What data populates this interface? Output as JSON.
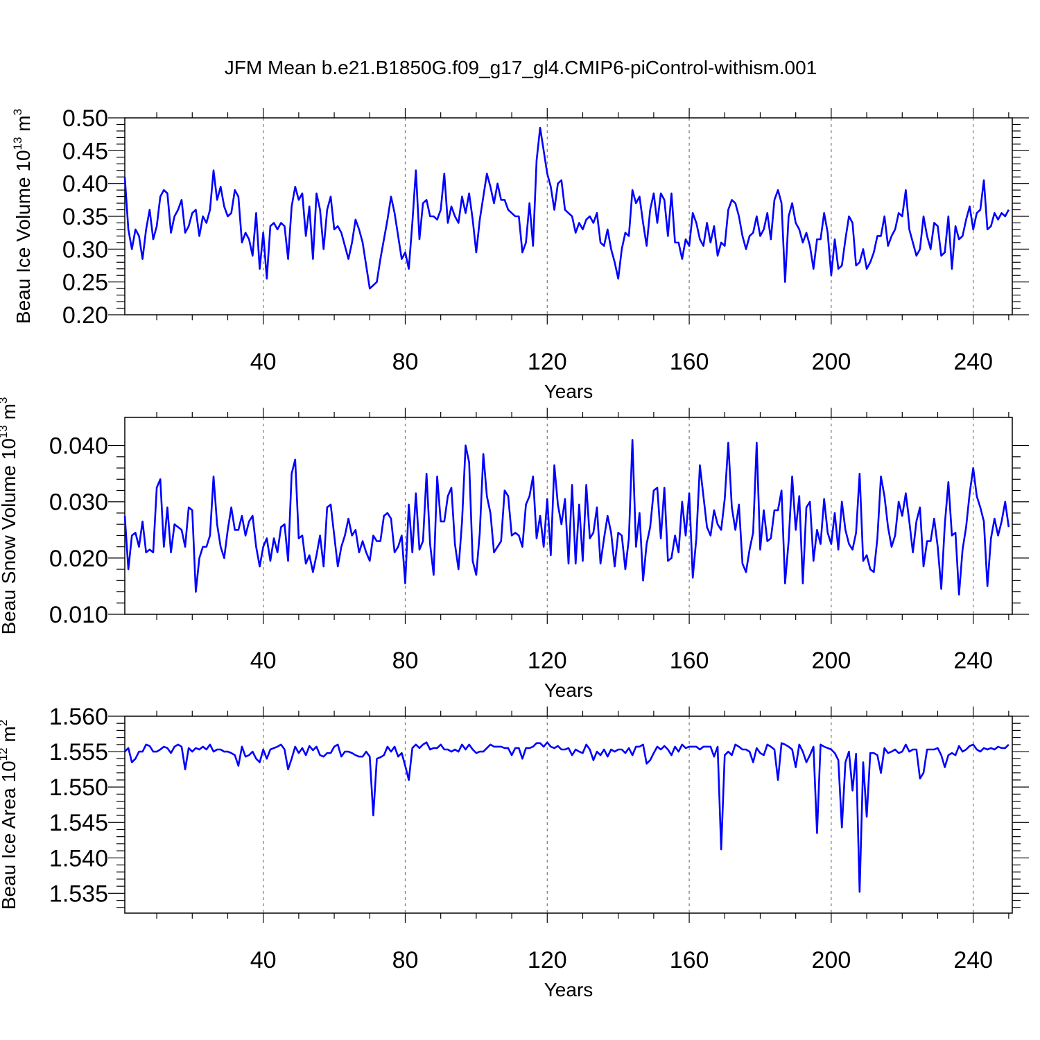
{
  "title": "JFM Mean b.e21.B1850G.f09_g17_gl4.CMIP6-piControl-withism.001",
  "colors": {
    "series": "#0000ff",
    "axis": "#000000",
    "grid": "#777777"
  },
  "chart_data": [
    {
      "type": "line",
      "ylabel_main": "Beau Ice Volume 10",
      "ylabel_exp": "13",
      "ylabel_unit": "m",
      "ylabel_unit_exp": "3",
      "xlabel": "Years",
      "xlim": [
        1,
        251
      ],
      "ylim": [
        0.2,
        0.5
      ],
      "xticks": [
        40,
        80,
        120,
        160,
        200,
        240
      ],
      "xtick_labels": [
        "40",
        "80",
        "120",
        "160",
        "200",
        "240"
      ],
      "yticks": [
        0.2,
        0.25,
        0.3,
        0.35,
        0.4,
        0.45,
        0.5
      ],
      "ytick_labels": [
        "0.20",
        "0.25",
        "0.30",
        "0.35",
        "0.40",
        "0.45",
        "0.50"
      ],
      "grid_x": [
        40,
        80,
        120,
        160,
        200,
        240
      ],
      "x_start": 1,
      "values": [
        0.41,
        0.33,
        0.3,
        0.33,
        0.32,
        0.285,
        0.33,
        0.36,
        0.315,
        0.335,
        0.38,
        0.39,
        0.385,
        0.325,
        0.35,
        0.36,
        0.375,
        0.325,
        0.335,
        0.355,
        0.36,
        0.32,
        0.35,
        0.34,
        0.36,
        0.42,
        0.375,
        0.395,
        0.365,
        0.35,
        0.355,
        0.39,
        0.38,
        0.31,
        0.325,
        0.315,
        0.29,
        0.355,
        0.27,
        0.325,
        0.255,
        0.335,
        0.34,
        0.33,
        0.34,
        0.335,
        0.285,
        0.365,
        0.395,
        0.375,
        0.385,
        0.32,
        0.365,
        0.285,
        0.385,
        0.36,
        0.3,
        0.36,
        0.38,
        0.33,
        0.335,
        0.325,
        0.305,
        0.285,
        0.31,
        0.345,
        0.33,
        0.31,
        0.275,
        0.24,
        0.245,
        0.25,
        0.285,
        0.315,
        0.345,
        0.38,
        0.355,
        0.32,
        0.285,
        0.295,
        0.27,
        0.34,
        0.42,
        0.315,
        0.37,
        0.375,
        0.35,
        0.35,
        0.345,
        0.36,
        0.415,
        0.34,
        0.365,
        0.35,
        0.34,
        0.38,
        0.355,
        0.385,
        0.345,
        0.295,
        0.345,
        0.38,
        0.415,
        0.395,
        0.37,
        0.4,
        0.375,
        0.375,
        0.36,
        0.355,
        0.35,
        0.35,
        0.295,
        0.31,
        0.37,
        0.305,
        0.435,
        0.485,
        0.45,
        0.415,
        0.395,
        0.36,
        0.4,
        0.405,
        0.36,
        0.355,
        0.35,
        0.325,
        0.34,
        0.33,
        0.345,
        0.35,
        0.34,
        0.355,
        0.31,
        0.305,
        0.33,
        0.3,
        0.28,
        0.255,
        0.3,
        0.325,
        0.32,
        0.39,
        0.37,
        0.38,
        0.34,
        0.305,
        0.36,
        0.385,
        0.34,
        0.385,
        0.375,
        0.32,
        0.385,
        0.31,
        0.31,
        0.285,
        0.315,
        0.305,
        0.355,
        0.34,
        0.315,
        0.305,
        0.34,
        0.31,
        0.335,
        0.29,
        0.31,
        0.305,
        0.36,
        0.375,
        0.37,
        0.35,
        0.32,
        0.3,
        0.32,
        0.325,
        0.35,
        0.32,
        0.33,
        0.355,
        0.315,
        0.375,
        0.39,
        0.37,
        0.25,
        0.35,
        0.37,
        0.34,
        0.33,
        0.31,
        0.325,
        0.305,
        0.27,
        0.315,
        0.315,
        0.355,
        0.325,
        0.26,
        0.315,
        0.27,
        0.275,
        0.315,
        0.35,
        0.34,
        0.275,
        0.28,
        0.3,
        0.27,
        0.28,
        0.295,
        0.32,
        0.32,
        0.35,
        0.305,
        0.32,
        0.33,
        0.355,
        0.35,
        0.39,
        0.33,
        0.31,
        0.29,
        0.3,
        0.35,
        0.32,
        0.3,
        0.34,
        0.335,
        0.29,
        0.295,
        0.35,
        0.27,
        0.335,
        0.315,
        0.32,
        0.345,
        0.365,
        0.33,
        0.355,
        0.36,
        0.405,
        0.33,
        0.335,
        0.355,
        0.345,
        0.355,
        0.35,
        0.36
      ]
    },
    {
      "type": "line",
      "ylabel_main": "Beau Snow Volume 10",
      "ylabel_exp": "13",
      "ylabel_unit": "m",
      "ylabel_unit_exp": "3",
      "xlabel": "Years",
      "xlim": [
        1,
        251
      ],
      "ylim": [
        0.01,
        0.045
      ],
      "xticks": [
        40,
        80,
        120,
        160,
        200,
        240
      ],
      "xtick_labels": [
        "40",
        "80",
        "120",
        "160",
        "200",
        "240"
      ],
      "yticks": [
        0.01,
        0.02,
        0.03,
        0.04
      ],
      "ytick_labels": [
        "0.010",
        "0.020",
        "0.030",
        "0.040"
      ],
      "grid_x": [
        40,
        80,
        120,
        160,
        200,
        240
      ],
      "x_start": 1,
      "values": [
        0.0275,
        0.018,
        0.024,
        0.0245,
        0.022,
        0.0265,
        0.021,
        0.0215,
        0.021,
        0.0325,
        0.034,
        0.022,
        0.029,
        0.021,
        0.026,
        0.0255,
        0.025,
        0.022,
        0.029,
        0.0285,
        0.014,
        0.02,
        0.022,
        0.022,
        0.024,
        0.0345,
        0.026,
        0.022,
        0.02,
        0.025,
        0.029,
        0.025,
        0.025,
        0.0275,
        0.024,
        0.0265,
        0.0275,
        0.022,
        0.0185,
        0.022,
        0.0235,
        0.0195,
        0.0235,
        0.021,
        0.0255,
        0.026,
        0.0195,
        0.035,
        0.0375,
        0.0235,
        0.024,
        0.019,
        0.0205,
        0.0175,
        0.0205,
        0.024,
        0.0185,
        0.029,
        0.0295,
        0.024,
        0.0185,
        0.022,
        0.024,
        0.027,
        0.024,
        0.025,
        0.021,
        0.023,
        0.021,
        0.0195,
        0.024,
        0.023,
        0.023,
        0.0275,
        0.028,
        0.027,
        0.021,
        0.022,
        0.024,
        0.0155,
        0.0295,
        0.021,
        0.0315,
        0.0215,
        0.023,
        0.035,
        0.0225,
        0.017,
        0.0345,
        0.0265,
        0.0265,
        0.031,
        0.0325,
        0.0225,
        0.018,
        0.0265,
        0.04,
        0.037,
        0.0195,
        0.017,
        0.0245,
        0.0385,
        0.031,
        0.028,
        0.021,
        0.022,
        0.023,
        0.032,
        0.031,
        0.024,
        0.0245,
        0.024,
        0.022,
        0.0295,
        0.031,
        0.0345,
        0.0235,
        0.0275,
        0.022,
        0.0305,
        0.0205,
        0.0365,
        0.0295,
        0.026,
        0.0305,
        0.019,
        0.033,
        0.019,
        0.0295,
        0.0195,
        0.033,
        0.0235,
        0.0245,
        0.029,
        0.019,
        0.0235,
        0.0275,
        0.0245,
        0.0185,
        0.0245,
        0.024,
        0.018,
        0.0235,
        0.041,
        0.022,
        0.028,
        0.016,
        0.0225,
        0.0255,
        0.032,
        0.0325,
        0.0235,
        0.0325,
        0.0195,
        0.02,
        0.024,
        0.021,
        0.03,
        0.024,
        0.0315,
        0.0165,
        0.0235,
        0.0365,
        0.031,
        0.0255,
        0.024,
        0.0285,
        0.026,
        0.025,
        0.0305,
        0.0405,
        0.029,
        0.025,
        0.0295,
        0.019,
        0.0175,
        0.0215,
        0.0245,
        0.0405,
        0.0215,
        0.0285,
        0.023,
        0.0235,
        0.0285,
        0.0285,
        0.032,
        0.0155,
        0.023,
        0.0345,
        0.025,
        0.031,
        0.0155,
        0.029,
        0.03,
        0.0195,
        0.025,
        0.0225,
        0.0305,
        0.0245,
        0.0225,
        0.028,
        0.0215,
        0.03,
        0.025,
        0.0225,
        0.0215,
        0.0245,
        0.035,
        0.0195,
        0.0205,
        0.018,
        0.0175,
        0.0235,
        0.0345,
        0.031,
        0.0255,
        0.022,
        0.024,
        0.03,
        0.0275,
        0.0315,
        0.0265,
        0.021,
        0.0265,
        0.029,
        0.0185,
        0.023,
        0.023,
        0.027,
        0.022,
        0.0145,
        0.026,
        0.0335,
        0.024,
        0.0245,
        0.0135,
        0.0215,
        0.0255,
        0.0315,
        0.036,
        0.031,
        0.029,
        0.0265,
        0.015,
        0.0235,
        0.027,
        0.024,
        0.0265,
        0.03,
        0.0255
      ]
    },
    {
      "type": "line",
      "ylabel_main": "Beau Ice Area 10",
      "ylabel_exp": "12",
      "ylabel_unit": "m",
      "ylabel_unit_exp": "2",
      "xlabel": "Years",
      "xlim": [
        1,
        251
      ],
      "ylim": [
        1.5322,
        1.56
      ],
      "xticks": [
        40,
        80,
        120,
        160,
        200,
        240
      ],
      "xtick_labels": [
        "40",
        "80",
        "120",
        "160",
        "200",
        "240"
      ],
      "yticks": [
        1.535,
        1.54,
        1.545,
        1.55,
        1.555,
        1.56
      ],
      "ytick_labels": [
        "1.535",
        "1.540",
        "1.545",
        "1.550",
        "1.555",
        "1.560"
      ],
      "grid_x": [
        40,
        80,
        120,
        160,
        200,
        240
      ],
      "x_start": 1,
      "values": [
        1.555,
        1.5555,
        1.5535,
        1.554,
        1.555,
        1.555,
        1.556,
        1.5558,
        1.555,
        1.555,
        1.5553,
        1.5557,
        1.5555,
        1.5548,
        1.5557,
        1.556,
        1.5557,
        1.5525,
        1.5555,
        1.555,
        1.5555,
        1.5553,
        1.5557,
        1.5553,
        1.556,
        1.555,
        1.5553,
        1.5553,
        1.555,
        1.555,
        1.5548,
        1.5545,
        1.553,
        1.5557,
        1.5543,
        1.5545,
        1.555,
        1.554,
        1.5535,
        1.5553,
        1.554,
        1.5553,
        1.5555,
        1.5557,
        1.556,
        1.5553,
        1.5525,
        1.554,
        1.5557,
        1.5548,
        1.5555,
        1.5545,
        1.5558,
        1.5552,
        1.5557,
        1.5545,
        1.5543,
        1.5548,
        1.5548,
        1.5557,
        1.556,
        1.5543,
        1.555,
        1.555,
        1.5548,
        1.5545,
        1.5543,
        1.5543,
        1.555,
        1.5543,
        1.546,
        1.554,
        1.5542,
        1.5545,
        1.5557,
        1.555,
        1.5557,
        1.5543,
        1.5548,
        1.553,
        1.551,
        1.5555,
        1.556,
        1.5555,
        1.556,
        1.5563,
        1.5553,
        1.5555,
        1.5555,
        1.556,
        1.5553,
        1.5553,
        1.555,
        1.5553,
        1.555,
        1.556,
        1.5553,
        1.556,
        1.5553,
        1.5548,
        1.555,
        1.555,
        1.5555,
        1.556,
        1.5557,
        1.5557,
        1.5557,
        1.5555,
        1.5555,
        1.5545,
        1.5555,
        1.5555,
        1.554,
        1.5555,
        1.5555,
        1.5557,
        1.5562,
        1.5562,
        1.5557,
        1.5563,
        1.5557,
        1.5555,
        1.5558,
        1.5553,
        1.5553,
        1.5555,
        1.5545,
        1.5553,
        1.555,
        1.5548,
        1.556,
        1.5553,
        1.5538,
        1.555,
        1.5545,
        1.5553,
        1.5543,
        1.5553,
        1.555,
        1.5553,
        1.5553,
        1.5548,
        1.5555,
        1.5545,
        1.5557,
        1.5557,
        1.556,
        1.5533,
        1.5538,
        1.5548,
        1.5557,
        1.5553,
        1.5558,
        1.5553,
        1.5545,
        1.5557,
        1.555,
        1.556,
        1.5555,
        1.5557,
        1.5557,
        1.5557,
        1.5553,
        1.5557,
        1.5557,
        1.5557,
        1.5543,
        1.5557,
        1.5412,
        1.5545,
        1.555,
        1.5545,
        1.556,
        1.5557,
        1.5553,
        1.5553,
        1.555,
        1.5535,
        1.5555,
        1.5548,
        1.5545,
        1.556,
        1.5557,
        1.5553,
        1.551,
        1.5562,
        1.556,
        1.5557,
        1.5553,
        1.5528,
        1.556,
        1.555,
        1.5535,
        1.5545,
        1.5557,
        1.5435,
        1.556,
        1.5557,
        1.5555,
        1.5553,
        1.5548,
        1.5538,
        1.5443,
        1.5535,
        1.555,
        1.5495,
        1.5547,
        1.5352,
        1.5535,
        1.5458,
        1.5548,
        1.5548,
        1.5545,
        1.552,
        1.5555,
        1.5548,
        1.555,
        1.5553,
        1.5548,
        1.555,
        1.556,
        1.555,
        1.5553,
        1.5553,
        1.5512,
        1.552,
        1.5553,
        1.5553,
        1.5553,
        1.5555,
        1.5545,
        1.5528,
        1.5545,
        1.5548,
        1.5545,
        1.5558,
        1.555,
        1.5553,
        1.5558,
        1.556,
        1.5553,
        1.555,
        1.5555,
        1.5553,
        1.5555,
        1.5553,
        1.5557,
        1.5555,
        1.5555,
        1.556
      ]
    }
  ]
}
